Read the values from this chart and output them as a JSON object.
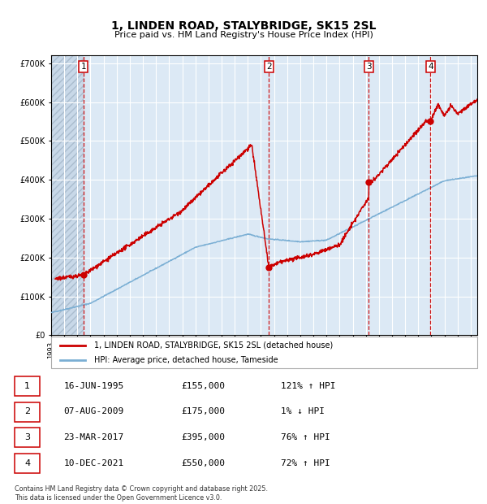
{
  "title": "1, LINDEN ROAD, STALYBRIDGE, SK15 2SL",
  "subtitle": "Price paid vs. HM Land Registry's House Price Index (HPI)",
  "red_label": "1, LINDEN ROAD, STALYBRIDGE, SK15 2SL (detached house)",
  "blue_label": "HPI: Average price, detached house, Tameside",
  "footnote": "Contains HM Land Registry data © Crown copyright and database right 2025.\nThis data is licensed under the Open Government Licence v3.0.",
  "transactions": [
    {
      "num": 1,
      "date": "16-JUN-1995",
      "price": 155000,
      "pct": "121%",
      "dir": "↑",
      "year": 1995.46
    },
    {
      "num": 2,
      "date": "07-AUG-2009",
      "price": 175000,
      "pct": "1%",
      "dir": "↓",
      "year": 2009.6
    },
    {
      "num": 3,
      "date": "23-MAR-2017",
      "price": 395000,
      "pct": "76%",
      "dir": "↑",
      "year": 2017.22
    },
    {
      "num": 4,
      "date": "10-DEC-2021",
      "price": 550000,
      "pct": "72%",
      "dir": "↑",
      "year": 2021.94
    }
  ],
  "ylim": [
    0,
    720000
  ],
  "yticks": [
    0,
    100000,
    200000,
    300000,
    400000,
    500000,
    600000,
    700000
  ],
  "xlim_start": 1993.0,
  "xlim_end": 2025.5,
  "bg_color": "#dce9f5",
  "red_color": "#cc0000",
  "blue_color": "#7bafd4",
  "grid_color": "#ffffff",
  "hatch_end": 1995.46
}
